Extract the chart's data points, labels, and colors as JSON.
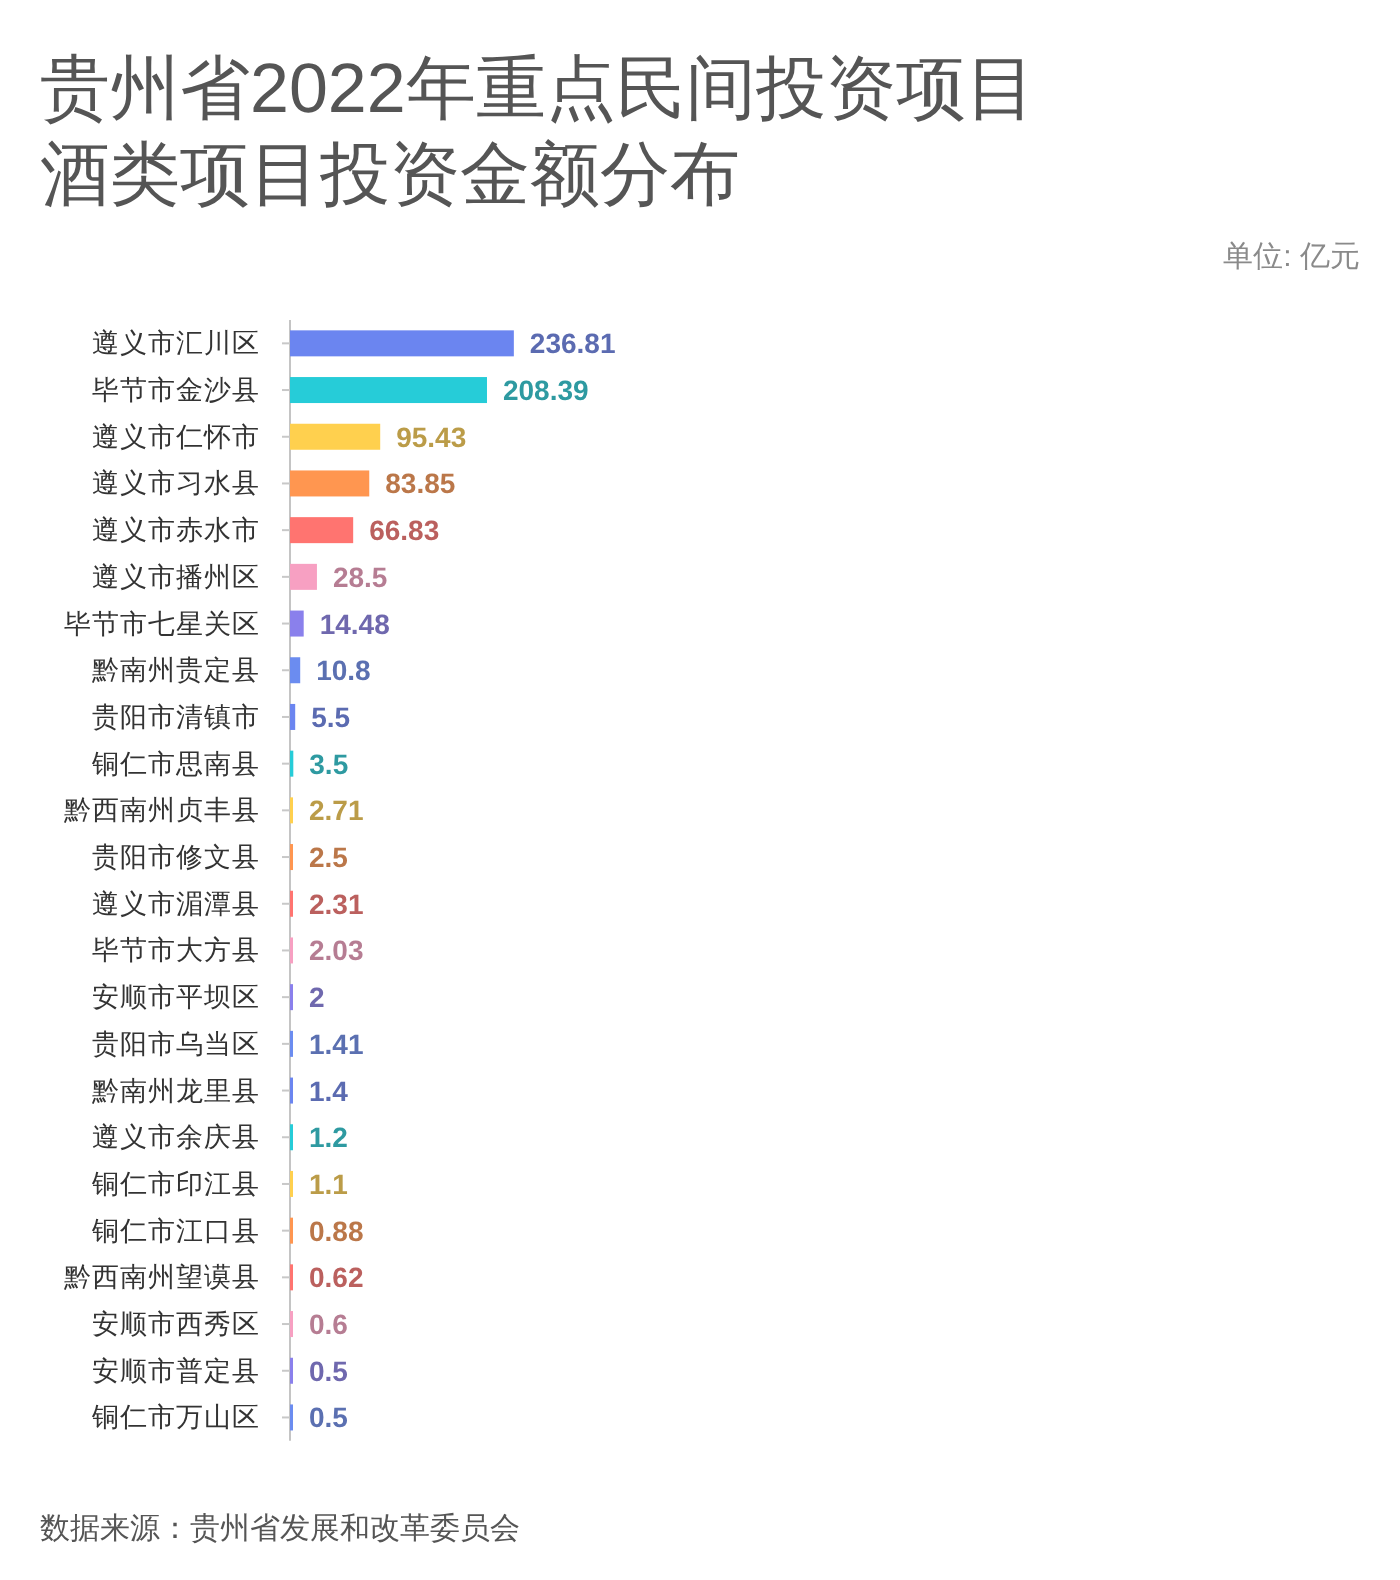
{
  "chart_data": {
    "type": "bar",
    "orientation": "horizontal",
    "title": "贵州省2022年重点民间投资项目酒类项目投资金额分布",
    "subtitle": "单位: 亿元",
    "categories": [
      "遵义市汇川区",
      "毕节市金沙县",
      "遵义市仁怀市",
      "遵义市习水县",
      "遵义市赤水市",
      "遵义市播州区",
      "毕节市七星关区",
      "黔南州贵定县",
      "贵阳市清镇市",
      "铜仁市思南县",
      "黔西南州贞丰县",
      "贵阳市修文县",
      "遵义市湄潭县",
      "毕节市大方县",
      "安顺市平坝区",
      "贵阳市乌当区",
      "黔南州龙里县",
      "遵义市余庆县",
      "铜仁市印江县",
      "铜仁市江口县",
      "黔西南州望谟县",
      "安顺市西秀区",
      "安顺市普定县",
      "铜仁市万山区"
    ],
    "values": [
      236.81,
      208.39,
      95.43,
      83.85,
      66.83,
      28.5,
      14.48,
      10.8,
      5.5,
      3.5,
      2.71,
      2.5,
      2.31,
      2.03,
      2,
      1.41,
      1.4,
      1.2,
      1.1,
      0.88,
      0.62,
      0.6,
      0.5,
      0.5
    ],
    "colors": [
      "#6b85f0",
      "#26ccd8",
      "#ffd04e",
      "#ff9650",
      "#ff7470",
      "#f7a0c2",
      "#8a80ec",
      "#6b8cf0",
      "#6b85f0",
      "#26ccd8",
      "#ffd04e",
      "#ff9650",
      "#ff7470",
      "#f7a0c2",
      "#8a80ec",
      "#6b8cf0",
      "#6b85f0",
      "#26ccd8",
      "#ffd04e",
      "#ff9650",
      "#ff7470",
      "#f7a0c2",
      "#8a80ec",
      "#6b8cf0"
    ],
    "data_labels": true,
    "annotations": [
      "数据来源：贵州省发展和改革委员会"
    ]
  }
}
